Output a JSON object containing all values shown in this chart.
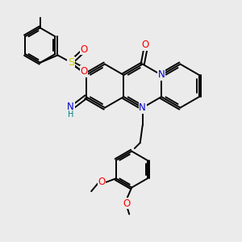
{
  "background_color": "#ebebeb",
  "figsize": [
    3.0,
    3.0
  ],
  "dpi": 100,
  "atom_colors": {
    "C": "#000000",
    "N": "#0000cc",
    "O": "#ff0000",
    "S": "#cccc00",
    "H": "#008080"
  },
  "bond_color": "#000000",
  "bond_lw": 1.4,
  "font_size": 8.5,
  "font_size_h": 7.0
}
